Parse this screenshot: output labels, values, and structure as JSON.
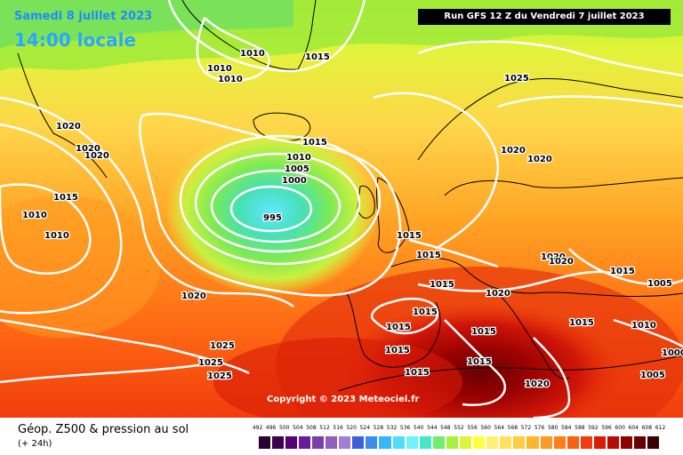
{
  "header": {
    "date": "Samedi 8 juillet 2023",
    "time": "14:00 locale",
    "run": "Run GFS 12 Z du Vendredi 7 juillet 2023"
  },
  "copyright": "Copyright © 2023 Meteociel.fr",
  "footer": {
    "title": "Géop. Z500 & pression au sol",
    "subtitle": "(+ 24h)"
  },
  "legend": {
    "ticks": [
      "492",
      "496",
      "500",
      "504",
      "508",
      "512",
      "516",
      "520",
      "524",
      "528",
      "532",
      "536",
      "540",
      "544",
      "548",
      "552",
      "556",
      "560",
      "564",
      "568",
      "572",
      "576",
      "580",
      "584",
      "588",
      "592",
      "596",
      "600",
      "604",
      "608",
      "612"
    ],
    "colors": [
      "#2b0033",
      "#3d004d",
      "#560073",
      "#6a1b9a",
      "#7b3fa8",
      "#8f5fbf",
      "#a27fd6",
      "#3d5fd9",
      "#3b8bf0",
      "#35b6ff",
      "#4fdcff",
      "#6ff2ff",
      "#44e8c8",
      "#6ef06b",
      "#a6f23b",
      "#dcf53b",
      "#ffff3b",
      "#fff170",
      "#ffe25a",
      "#ffcc3f",
      "#ffb52c",
      "#ff9a20",
      "#ff7f16",
      "#ff5f12",
      "#f23a0c",
      "#d91c06",
      "#b80a00",
      "#900000",
      "#6b0000",
      "#3b0000"
    ]
  },
  "isobars": [
    {
      "label": "1010",
      "role": "pressure-label"
    },
    {
      "label": "1010",
      "role": "pressure-label"
    },
    {
      "label": "1010",
      "role": "pressure-label"
    },
    {
      "label": "1015",
      "role": "pressure-label"
    },
    {
      "label": "1020",
      "role": "pressure-label"
    },
    {
      "label": "1020",
      "role": "pressure-label"
    },
    {
      "label": "1020",
      "role": "pressure-label"
    },
    {
      "label": "1015",
      "role": "pressure-label"
    },
    {
      "label": "1010",
      "role": "pressure-label"
    },
    {
      "label": "1010",
      "role": "pressure-label"
    },
    {
      "label": "1015",
      "role": "pressure-label"
    },
    {
      "label": "1010",
      "role": "pressure-label"
    },
    {
      "label": "1005",
      "role": "pressure-label"
    },
    {
      "label": "1000",
      "role": "pressure-label"
    },
    {
      "label": "995",
      "role": "pressure-label"
    },
    {
      "label": "1025",
      "role": "pressure-label"
    },
    {
      "label": "1020",
      "role": "pressure-label"
    },
    {
      "label": "1020",
      "role": "pressure-label"
    },
    {
      "label": "1015",
      "role": "pressure-label"
    },
    {
      "label": "1015",
      "role": "pressure-label"
    },
    {
      "label": "1015",
      "role": "pressure-label"
    },
    {
      "label": "1020",
      "role": "pressure-label"
    },
    {
      "label": "1020",
      "role": "pressure-label"
    },
    {
      "label": "1020",
      "role": "pressure-label"
    },
    {
      "label": "1015",
      "role": "pressure-label"
    },
    {
      "label": "1005",
      "role": "pressure-label"
    },
    {
      "label": "1015",
      "role": "pressure-label"
    },
    {
      "label": "1015",
      "role": "pressure-label"
    },
    {
      "label": "1010",
      "role": "pressure-label"
    },
    {
      "label": "1015",
      "role": "pressure-label"
    },
    {
      "label": "1015",
      "role": "pressure-label"
    },
    {
      "label": "1015",
      "role": "pressure-label"
    },
    {
      "label": "1000",
      "role": "pressure-label"
    },
    {
      "label": "1015",
      "role": "pressure-label"
    },
    {
      "label": "1020",
      "role": "pressure-label"
    },
    {
      "label": "1005",
      "role": "pressure-label"
    },
    {
      "label": "1020",
      "role": "pressure-label"
    },
    {
      "label": "1025",
      "role": "pressure-label"
    },
    {
      "label": "1025",
      "role": "pressure-label"
    },
    {
      "label": "1025",
      "role": "pressure-label"
    },
    {
      "label": "1015",
      "role": "pressure-label"
    }
  ]
}
